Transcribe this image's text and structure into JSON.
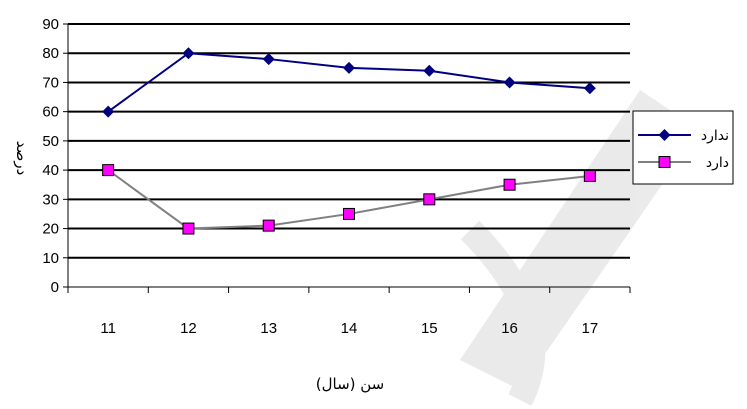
{
  "chart_data": {
    "type": "line",
    "title": "",
    "xlabel": "سن (سال)",
    "ylabel": "درصد",
    "categories": [
      "11",
      "12",
      "13",
      "14",
      "15",
      "16",
      "17"
    ],
    "ylim": [
      0,
      90
    ],
    "y_ticks": [
      "0",
      "10",
      "20",
      "30",
      "40",
      "50",
      "60",
      "70",
      "80",
      "90"
    ],
    "grid": true,
    "legend_position": "right",
    "series": [
      {
        "name": "ندارد",
        "values": [
          60,
          80,
          78,
          75,
          74,
          70,
          68
        ],
        "color": "#000080",
        "marker": "diamond"
      },
      {
        "name": "دارد",
        "values": [
          40,
          20,
          21,
          25,
          30,
          35,
          38
        ],
        "color": "#808080",
        "marker": "square",
        "marker_color": "#ff00ff"
      }
    ]
  }
}
